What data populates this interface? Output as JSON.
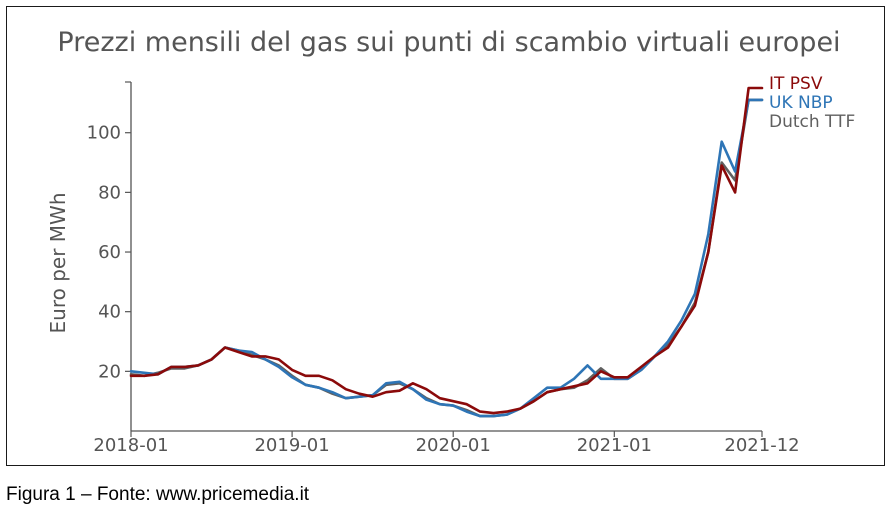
{
  "caption": "Figura 1 – Fonte: www.pricemedia.it",
  "chart_data": {
    "type": "line",
    "title": "Prezzi mensili del gas sui punti di scambio virtuali europei",
    "ylabel": "Euro per MWh",
    "xlabel": "",
    "ylim": [
      0,
      117
    ],
    "yticks": [
      20,
      40,
      60,
      80,
      100
    ],
    "xticks": [
      "2018-01",
      "2019-01",
      "2020-01",
      "2021-01",
      "2021-12"
    ],
    "legend_position": "top-right, at line ends",
    "x": [
      "2018-01",
      "2018-02",
      "2018-03",
      "2018-04",
      "2018-05",
      "2018-06",
      "2018-07",
      "2018-08",
      "2018-09",
      "2018-10",
      "2018-11",
      "2018-12",
      "2019-01",
      "2019-02",
      "2019-03",
      "2019-04",
      "2019-05",
      "2019-06",
      "2019-07",
      "2019-08",
      "2019-09",
      "2019-10",
      "2019-11",
      "2019-12",
      "2020-01",
      "2020-02",
      "2020-03",
      "2020-04",
      "2020-05",
      "2020-06",
      "2020-07",
      "2020-08",
      "2020-09",
      "2020-10",
      "2020-11",
      "2020-12",
      "2021-01",
      "2021-02",
      "2021-03",
      "2021-04",
      "2021-05",
      "2021-06",
      "2021-07",
      "2021-08",
      "2021-09",
      "2021-10",
      "2021-11",
      "2021-12"
    ],
    "series": [
      {
        "name": "Dutch TTF",
        "color": "#606060",
        "values": [
          19,
          18.5,
          19.5,
          21,
          21,
          22,
          24,
          28,
          27,
          25.5,
          24,
          22,
          18.5,
          15.5,
          14.5,
          12.5,
          11,
          11.5,
          12,
          15.5,
          16,
          14,
          11,
          9,
          8.5,
          7,
          5,
          5,
          5.5,
          7.5,
          10,
          13,
          14,
          14.5,
          17,
          21,
          17.5,
          17.5,
          20.5,
          25,
          29,
          35,
          43,
          60,
          90,
          84,
          111,
          111
        ]
      },
      {
        "name": "UK NBP",
        "color": "#2e75b6",
        "values": [
          20,
          19.5,
          19,
          21.5,
          21.5,
          22,
          24,
          28,
          27,
          26.5,
          24,
          21.5,
          18,
          15.5,
          14.5,
          13,
          11,
          11.5,
          12,
          16,
          16.5,
          14,
          10.5,
          9,
          8.5,
          6.5,
          5,
          5,
          5.5,
          7.5,
          11,
          14.5,
          14.5,
          17.5,
          22,
          17.5,
          17.5,
          17.5,
          20.5,
          25,
          30,
          37,
          46,
          66,
          97,
          87,
          111,
          111
        ]
      },
      {
        "name": "IT PSV",
        "color": "#8b0a0a",
        "values": [
          18.5,
          18.5,
          19,
          21.5,
          21.5,
          22,
          24,
          28,
          26.5,
          25,
          25,
          24,
          20.5,
          18.5,
          18.5,
          17,
          14,
          12.5,
          11.5,
          13,
          13.5,
          16,
          14,
          11,
          10,
          9,
          6.5,
          6,
          6.5,
          7.5,
          10,
          13,
          14,
          15,
          16,
          20,
          18,
          18,
          21.5,
          25,
          28,
          35,
          42,
          60,
          89,
          80,
          115,
          115
        ]
      }
    ]
  }
}
